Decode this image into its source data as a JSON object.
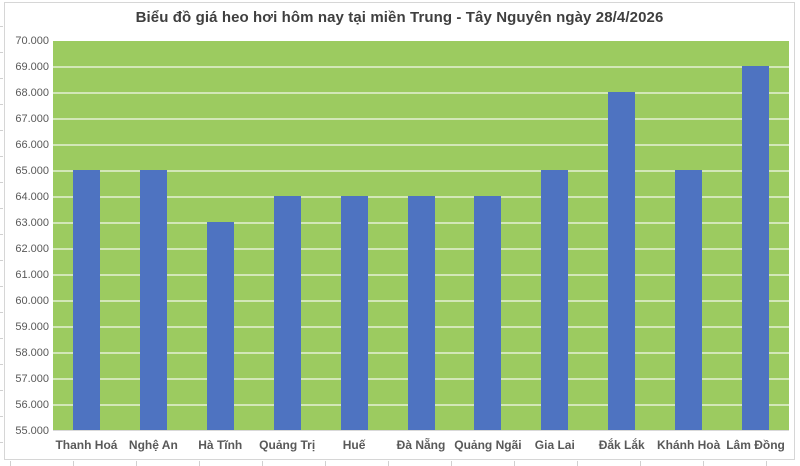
{
  "chart_data": {
    "type": "bar",
    "title": "Biểu đồ giá heo hơi hôm nay tại miền Trung - Tây Nguyên ngày 28/4/2026",
    "categories": [
      "Thanh Hoá",
      "Nghệ An",
      "Hà Tĩnh",
      "Quảng Trị",
      "Huế",
      "Đà Nẵng",
      "Quảng Ngãi",
      "Gia Lai",
      "Đắk Lắk",
      "Khánh Hoà",
      "Lâm Đồng"
    ],
    "values": [
      65000,
      65000,
      63000,
      64000,
      64000,
      64000,
      64000,
      65000,
      68000,
      65000,
      69000
    ],
    "xlabel": "",
    "ylabel": "",
    "ylim": [
      55000,
      70000
    ],
    "ytick_step": 1000,
    "ytick_labels": [
      "55.000",
      "56.000",
      "57.000",
      "58.000",
      "59.000",
      "60.000",
      "61.000",
      "62.000",
      "63.000",
      "64.000",
      "65.000",
      "66.000",
      "67.000",
      "68.000",
      "69.000",
      "70.000"
    ],
    "grid": "horizontal",
    "legend": "none",
    "colors": {
      "bar": "#4e73c1",
      "plot_background": "#9ccb60",
      "gridline": "rgba(255,255,255,0.55)",
      "title": "#3f3f3f",
      "axis_label": "#595959",
      "chart_border": "#d6d6d6"
    }
  }
}
